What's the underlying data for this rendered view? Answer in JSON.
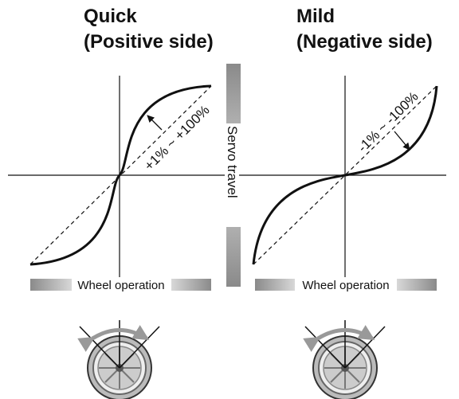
{
  "panels": [
    {
      "title": "Quick",
      "subtitle": "(Positive side)",
      "range_label": "+1% ~ +100%",
      "axis_label": "Wheel operation"
    },
    {
      "title": "Mild",
      "subtitle": "(Negative side)",
      "range_label": "-1% ~ -100%",
      "axis_label": "Wheel operation"
    }
  ],
  "vertical_axis_label": "Servo travel"
}
